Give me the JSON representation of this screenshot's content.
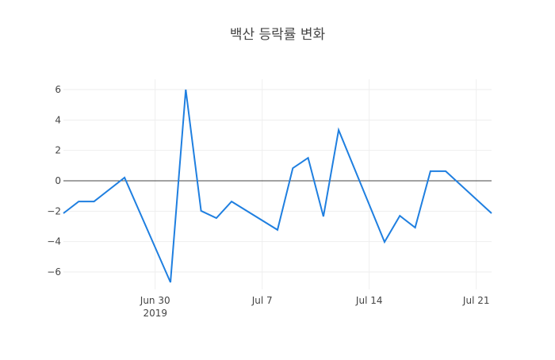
{
  "chart_data": {
    "type": "line",
    "title": "백산 등락률 변화",
    "xlabel": "",
    "ylabel": "",
    "x": [
      "2019-06-24",
      "2019-06-25",
      "2019-06-26",
      "2019-06-28",
      "2019-07-01",
      "2019-07-02",
      "2019-07-03",
      "2019-07-04",
      "2019-07-05",
      "2019-07-08",
      "2019-07-09",
      "2019-07-10",
      "2019-07-11",
      "2019-07-12",
      "2019-07-15",
      "2019-07-16",
      "2019-07-17",
      "2019-07-18",
      "2019-07-19",
      "2019-07-22"
    ],
    "series": [
      {
        "name": "등락률",
        "color": "#1f7fe0",
        "values": [
          -2.14,
          -1.36,
          -1.36,
          0.21,
          -6.68,
          6.0,
          -1.98,
          -2.45,
          -1.36,
          -3.23,
          0.83,
          1.51,
          -2.35,
          3.34,
          -4.02,
          -2.3,
          -3.08,
          0.63,
          0.63,
          -2.14
        ]
      }
    ],
    "xrange": [
      "2019-06-24",
      "2019-07-22"
    ],
    "ylim": [
      -7.2,
      6.6
    ],
    "yticks": [
      6,
      4,
      2,
      0,
      -2,
      -4,
      -6
    ],
    "ytick_labels": [
      "6",
      "4",
      "2",
      "0",
      "−2",
      "−4",
      "−6"
    ],
    "xticks": [
      "2019-06-30",
      "2019-07-07",
      "2019-07-14",
      "2019-07-21"
    ],
    "xtick_labels": [
      "Jun 30",
      "Jul 7",
      "Jul 14",
      "Jul 21"
    ],
    "xtick_sublabel": "2019",
    "grid": true,
    "zeroline": true,
    "legend": "none"
  }
}
